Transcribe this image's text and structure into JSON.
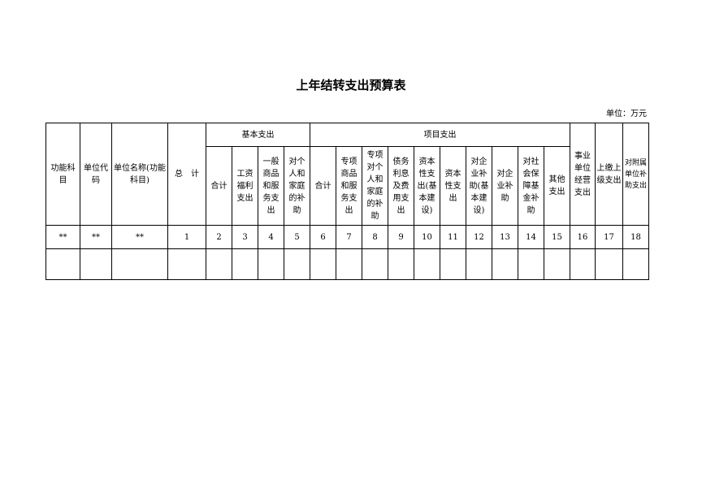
{
  "title": "上年结转支出预算表",
  "unit": "单位：万元",
  "fixed_headers": [
    "功能科\n目",
    "单位代\n码",
    "单位名称(功能\n科目)",
    "总　计"
  ],
  "groups": {
    "basic": "基本支出",
    "project": "项目支出"
  },
  "basic_columns": [
    "合计",
    "工资\n福利\n支出",
    "一般\n商品\n和服\n务支\n出",
    "对个\n人和\n家庭\n的补\n助"
  ],
  "project_columns": [
    "合计",
    "专项\n商品\n和服\n务支\n出",
    "专项\n对个\n人和\n家庭\n的补\n助",
    "债务\n利息\n及费\n用支\n出",
    "资本\n性支\n出(基\n本建\n设)",
    "资本\n性支\n出",
    "对企\n业补\n助(基\n本建\n设)",
    "对企\n业补\n助",
    "对社\n会保\n障基\n金补\n助",
    "其他\n支出"
  ],
  "tail_headers": [
    "事业\n单位\n经营\n支出",
    "上缴上\n级支出",
    "对附属\n单位补\n助支出"
  ],
  "index_row": [
    "**",
    "**",
    "**",
    "1",
    "2",
    "3",
    "4",
    "5",
    "6",
    "7",
    "8",
    "9",
    "10",
    "11",
    "12",
    "13",
    "14",
    "15",
    "16",
    "17",
    "18"
  ]
}
